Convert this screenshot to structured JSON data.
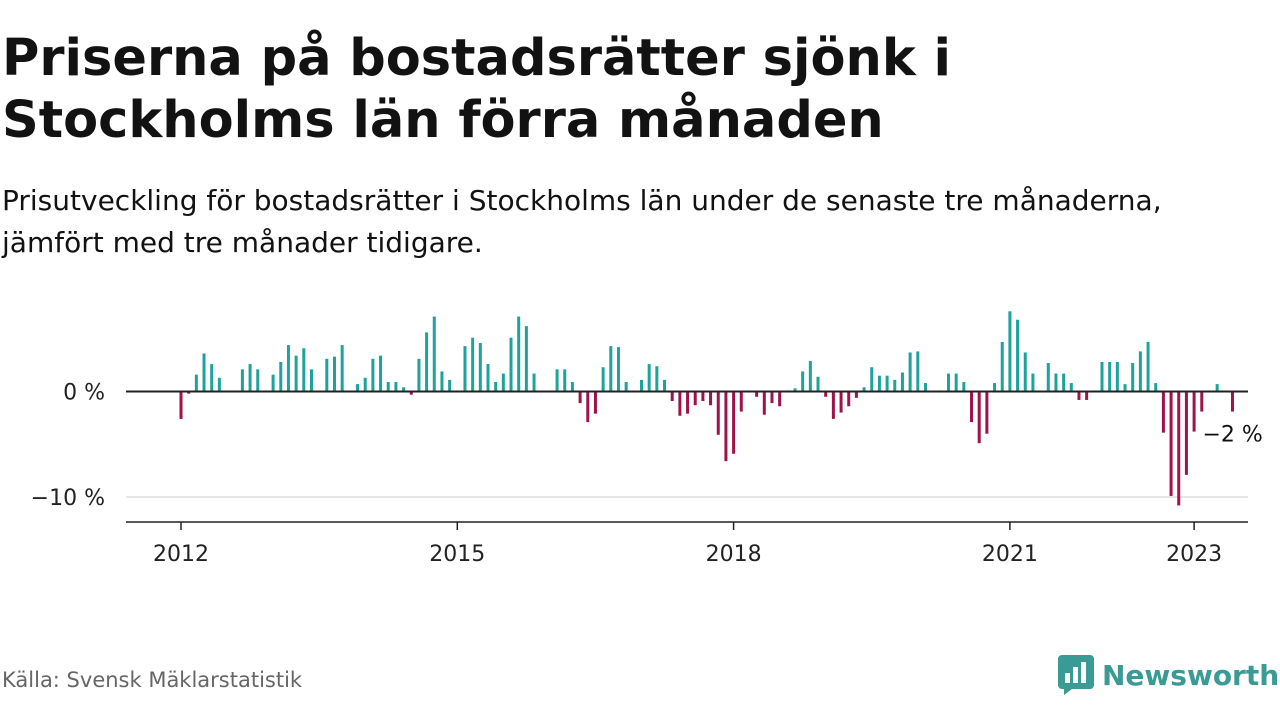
{
  "title": "Priserna på bostadsrätter sjönk i Stockholms län förra månaden",
  "subtitle": "Prisutveckling för bostadsrätter i Stockholms län under de senaste tre månaderna, jämfört med tre månader tidigare.",
  "source": "Källa: Svensk Mäklarstatistik",
  "brand": {
    "name": "Newsworthy",
    "icon": "newsworthy-logo-icon",
    "color": "#3a9a94"
  },
  "colors": {
    "positive": "#1ea39a",
    "negative": "#a0124a",
    "axis": "#222222",
    "grid": "#dddddd"
  },
  "chart_data": {
    "type": "bar",
    "x_start": "2012-01",
    "frequency": "monthly",
    "ylim": [
      -12,
      8
    ],
    "y_ticks": [
      0,
      -10
    ],
    "y_tick_labels": [
      "0 %",
      "−10 %"
    ],
    "x_ticks": [
      "2012",
      "2015",
      "2018",
      "2021",
      "2023"
    ],
    "grid": "horizontal",
    "annotation": {
      "text": "−2 %",
      "target": "last"
    },
    "values": [
      -2.6,
      -0.2,
      1.6,
      3.6,
      2.6,
      1.3,
      0.1,
      0.1,
      2.1,
      2.6,
      2.1,
      0.1,
      1.6,
      2.8,
      4.4,
      3.4,
      4.1,
      2.1,
      0.1,
      3.1,
      3.3,
      4.4,
      0.1,
      0.7,
      1.3,
      3.1,
      3.4,
      0.9,
      0.9,
      0.4,
      -0.3,
      3.1,
      5.6,
      7.1,
      1.9,
      1.1,
      0.1,
      4.3,
      5.1,
      4.6,
      2.6,
      0.9,
      1.7,
      5.1,
      7.1,
      6.2,
      1.7,
      0.1,
      0.1,
      2.1,
      2.1,
      0.9,
      -1.1,
      -2.9,
      -2.1,
      2.3,
      4.3,
      4.2,
      0.9,
      0.1,
      1.1,
      2.6,
      2.4,
      1.1,
      -0.9,
      -2.3,
      -2.1,
      -1.3,
      -0.9,
      -1.3,
      -4.1,
      -6.6,
      -5.9,
      -1.9,
      0.1,
      -0.5,
      -2.2,
      -1.1,
      -1.4,
      0.1,
      0.3,
      1.9,
      2.9,
      1.4,
      -0.5,
      -2.6,
      -2.0,
      -1.4,
      -0.6,
      0.4,
      2.3,
      1.5,
      1.5,
      1.1,
      1.8,
      3.7,
      3.8,
      0.8,
      0.1,
      0.1,
      1.7,
      1.7,
      0.9,
      -2.9,
      -4.9,
      -4.0,
      0.8,
      4.7,
      7.6,
      6.8,
      3.7,
      1.7,
      0.1,
      2.7,
      1.7,
      1.7,
      0.8,
      -0.8,
      -0.8,
      0.1,
      2.8,
      2.8,
      2.8,
      0.7,
      2.7,
      3.8,
      4.7,
      0.8,
      -3.9,
      -9.9,
      -10.8,
      -7.9,
      -3.8,
      -1.9,
      0.1,
      0.7,
      0.1,
      -1.9
    ]
  }
}
